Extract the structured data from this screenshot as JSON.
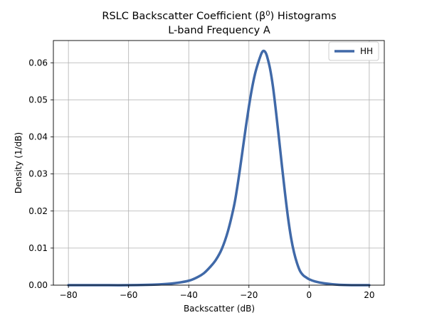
{
  "chart_data": {
    "type": "line",
    "title_line1": "RSLC Backscatter Coefficient (β",
    "title_sup": "0",
    "title_line1_end": ") Histograms",
    "title_line2": "L-band Frequency A",
    "xlabel": "Backscatter (dB)",
    "ylabel": "Density (1/dB)",
    "xlim": [
      -85,
      25
    ],
    "ylim": [
      0,
      0.066
    ],
    "xticks": [
      -80,
      -60,
      -40,
      -20,
      0,
      20
    ],
    "xtick_labels": [
      "−80",
      "−60",
      "−40",
      "−20",
      "0",
      "20"
    ],
    "yticks": [
      0.0,
      0.01,
      0.02,
      0.03,
      0.04,
      0.05,
      0.06
    ],
    "ytick_labels": [
      "0.00",
      "0.01",
      "0.02",
      "0.03",
      "0.04",
      "0.05",
      "0.06"
    ],
    "grid": true,
    "legend_position": "top-right",
    "colors": {
      "series": "#4069a8",
      "grid": "#b0b0b0",
      "axis": "#000000"
    },
    "series": [
      {
        "name": "HH",
        "x": [
          -80,
          -70,
          -60,
          -50,
          -45,
          -40,
          -37,
          -35,
          -33,
          -31,
          -29,
          -27,
          -25,
          -24,
          -23,
          -22,
          -21,
          -20,
          -19,
          -18,
          -17,
          -16,
          -15.5,
          -15,
          -14.5,
          -14,
          -13,
          -12,
          -11,
          -10,
          -9,
          -8,
          -7,
          -6,
          -5,
          -4,
          -3,
          -2,
          -1,
          0,
          2,
          5,
          10,
          15,
          20
        ],
        "y": [
          0.0,
          0.0,
          0.0,
          0.0002,
          0.0005,
          0.0012,
          0.0022,
          0.0032,
          0.0048,
          0.0068,
          0.0098,
          0.0145,
          0.0212,
          0.0258,
          0.0312,
          0.037,
          0.0428,
          0.0482,
          0.053,
          0.0569,
          0.0598,
          0.0622,
          0.063,
          0.0632,
          0.0628,
          0.0618,
          0.0585,
          0.0535,
          0.0468,
          0.0395,
          0.032,
          0.0248,
          0.0182,
          0.0128,
          0.0088,
          0.0059,
          0.0038,
          0.0027,
          0.0021,
          0.0016,
          0.001,
          0.0005,
          0.0001,
          0.0,
          0.0
        ]
      }
    ]
  }
}
